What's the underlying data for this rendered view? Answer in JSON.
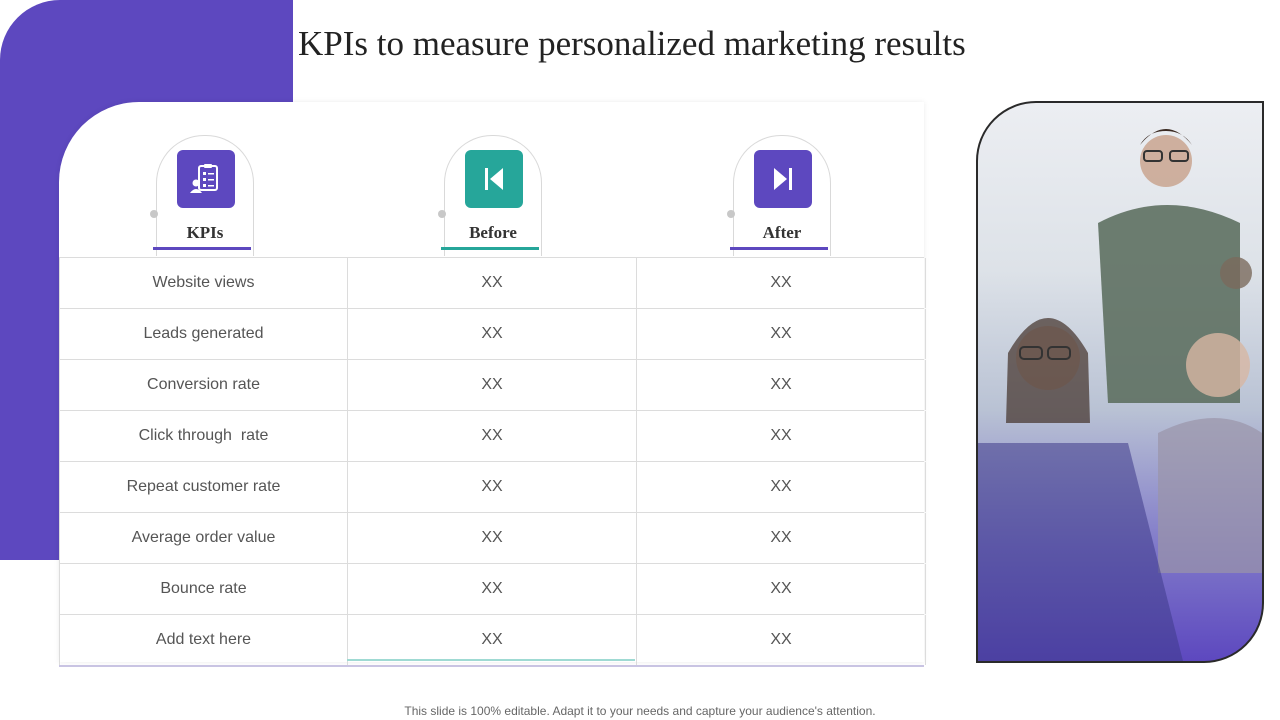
{
  "title": "KPIs to measure personalized marketing results",
  "columns": [
    {
      "label": "KPIs",
      "icon": "clipboard-person-icon",
      "color": "#5d48bf"
    },
    {
      "label": "Before",
      "icon": "skip-back-icon",
      "color": "#26a69a"
    },
    {
      "label": "After",
      "icon": "skip-forward-icon",
      "color": "#5d48bf"
    }
  ],
  "rows": [
    {
      "kpi": "Website views",
      "before": "XX",
      "after": "XX"
    },
    {
      "kpi": "Leads generated",
      "before": "XX",
      "after": "XX"
    },
    {
      "kpi": "Conversion rate",
      "before": "XX",
      "after": "XX"
    },
    {
      "kpi": "Click through  rate",
      "before": "XX",
      "after": "XX"
    },
    {
      "kpi": "Repeat customer rate",
      "before": "XX",
      "after": "XX"
    },
    {
      "kpi": "Average order value",
      "before": "XX",
      "after": "XX"
    },
    {
      "kpi": "Bounce rate",
      "before": "XX",
      "after": "XX"
    },
    {
      "kpi": "Add text here",
      "before": "XX",
      "after": "XX"
    }
  ],
  "footer": "This slide is 100% editable. Adapt it to your needs and capture your audience's attention."
}
